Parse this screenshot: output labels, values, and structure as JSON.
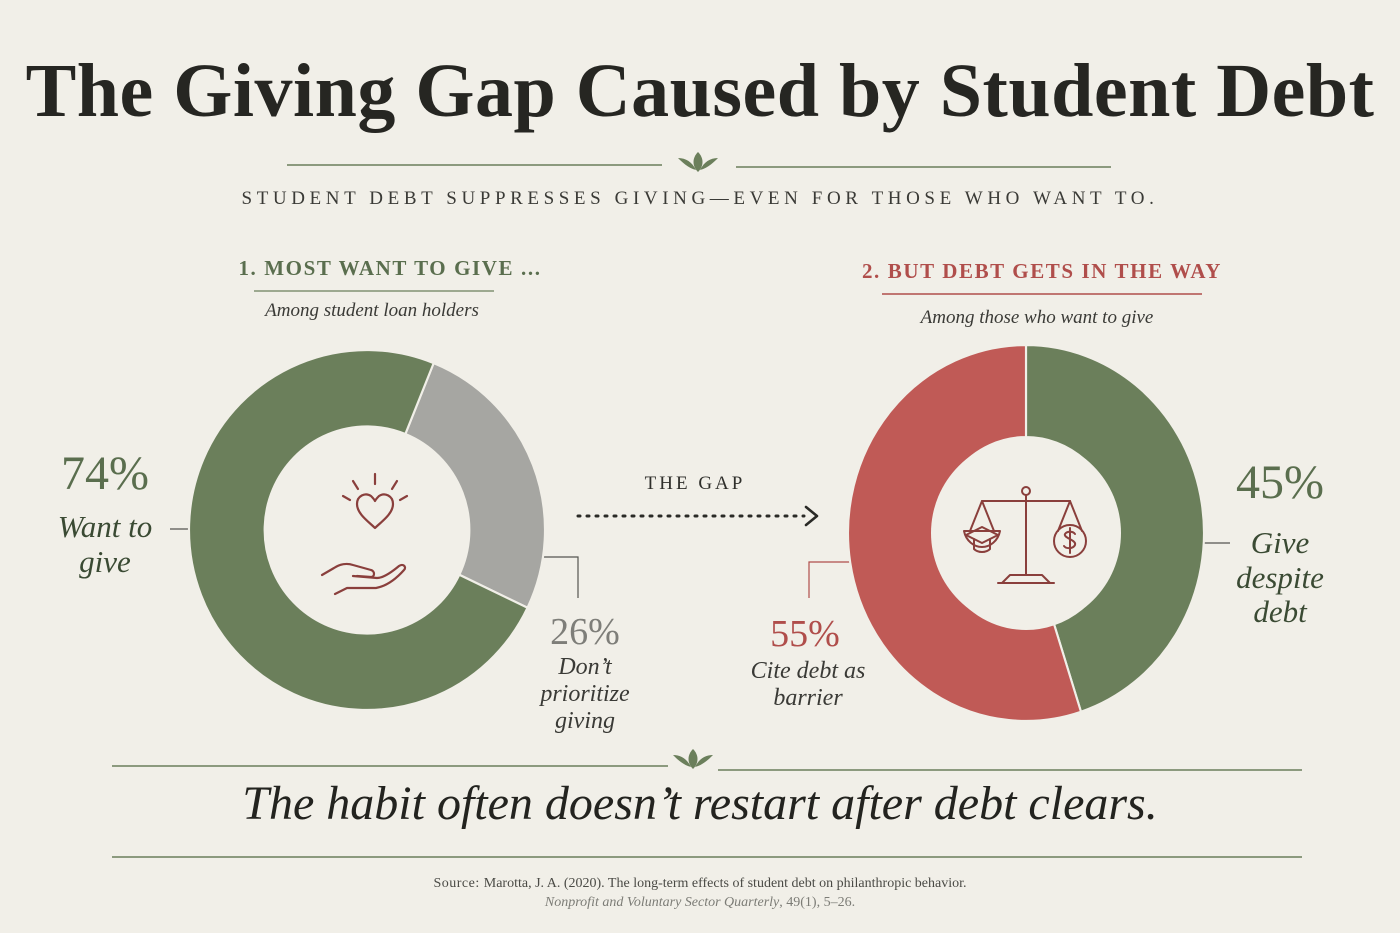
{
  "title": "The Giving Gap Caused by Student Debt",
  "subtitle": "STUDENT DEBT SUPPRESSES GIVING—EVEN FOR THOSE WHO WANT TO.",
  "gap_label": "THE GAP",
  "tagline": "The habit often doesn’t restart after debt clears.",
  "source": {
    "label": "Source:",
    "text": "Marotta, J. A. (2020). The long-term effects of student debt on philanthropic behavior.",
    "journal": "Nonprofit and Voluntary Sector Quarterly",
    "volume": ", 49(1), 5–26."
  },
  "colors": {
    "green": "#6b7f5b",
    "gray": "#a6a6a2",
    "red": "#c05a56",
    "background": "#f1efe8",
    "title_green": "#5a6e4e",
    "title_red": "#b04e4b"
  },
  "chart_data": [
    {
      "type": "pie",
      "style": "donut",
      "title": "1. MOST WANT TO GIVE ...",
      "subtitle": "Among student loan holders",
      "center_icon": "heart-in-hand-icon",
      "slices": [
        {
          "pct": "74%",
          "value": 74,
          "label": "Want to give",
          "color": "#6b7f5b"
        },
        {
          "pct": "26%",
          "value": 26,
          "label": "Don’t prioritize giving",
          "color": "#a6a6a2"
        }
      ]
    },
    {
      "type": "pie",
      "style": "donut",
      "title": "2. BUT DEBT GETS IN THE WAY",
      "subtitle": "Among those who want to give",
      "center_icon": "scale-graduation-cap-dollar-icon",
      "slices": [
        {
          "pct": "45%",
          "value": 45,
          "label": "Give despite debt",
          "color": "#6b7f5b"
        },
        {
          "pct": "55%",
          "value": 55,
          "label": "Cite debt as barrier",
          "color": "#c05a56"
        }
      ]
    }
  ]
}
